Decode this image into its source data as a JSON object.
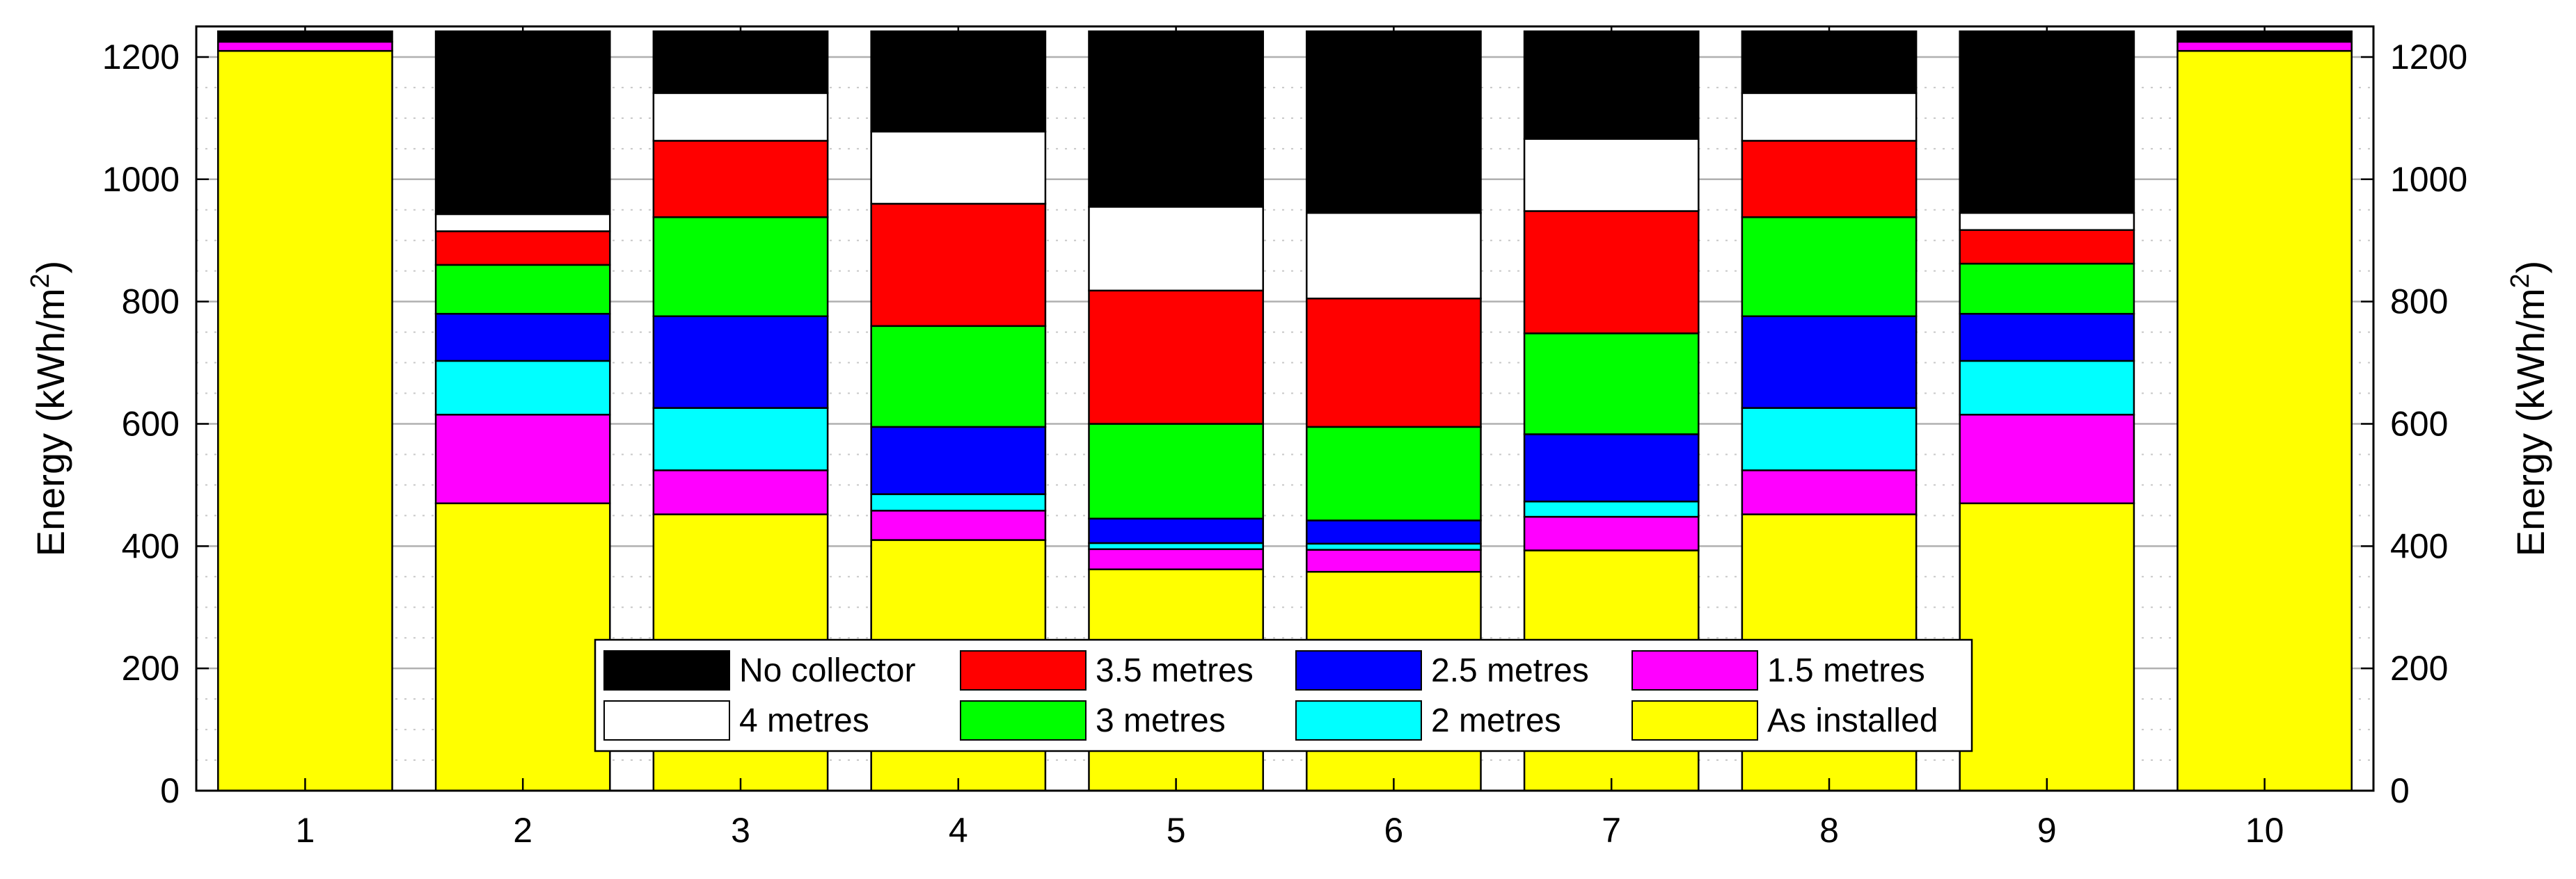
{
  "chart_data": {
    "type": "bar",
    "stacked": true,
    "categories": [
      "1",
      "2",
      "3",
      "4",
      "5",
      "6",
      "7",
      "8",
      "9",
      "10"
    ],
    "ylabel_base": "Energy (kWh/m",
    "ylabel_sup": "2",
    "ylabel_close": ")",
    "ylim": [
      0,
      1250
    ],
    "yticks": [
      "0",
      "200",
      "400",
      "600",
      "800",
      "1000",
      "1200"
    ],
    "grid": true,
    "legend_position": "bottom-center",
    "series": [
      {
        "name": "As installed",
        "color": "#ffff00",
        "values": [
          1210,
          470,
          452,
          410,
          362,
          358,
          393,
          452,
          470,
          1210
        ]
      },
      {
        "name": "1.5 metres",
        "color": "#ff00ff",
        "values": [
          15,
          145,
          72,
          48,
          33,
          36,
          55,
          72,
          145,
          15
        ]
      },
      {
        "name": "2 metres",
        "color": "#00ffff",
        "values": [
          0,
          88,
          102,
          27,
          10,
          10,
          25,
          102,
          88,
          0
        ]
      },
      {
        "name": "2.5 metres",
        "color": "#0000ff",
        "values": [
          0,
          77,
          150,
          110,
          40,
          38,
          110,
          150,
          77,
          0
        ]
      },
      {
        "name": "3 metres",
        "color": "#00ff00",
        "values": [
          0,
          80,
          162,
          165,
          155,
          153,
          165,
          162,
          82,
          0
        ]
      },
      {
        "name": "3.5 metres",
        "color": "#ff0000",
        "values": [
          0,
          55,
          125,
          200,
          218,
          210,
          200,
          125,
          55,
          0
        ]
      },
      {
        "name": "4 metres",
        "color": "#ffffff",
        "values": [
          0,
          28,
          78,
          118,
          137,
          140,
          118,
          78,
          28,
          0
        ]
      },
      {
        "name": "No collector",
        "color": "#000000",
        "values": [
          17,
          299,
          101,
          164,
          287,
          297,
          176,
          101,
          297,
          17
        ]
      }
    ],
    "legend_layout": [
      [
        "No collector",
        "3.5 metres",
        "2.5 metres",
        "1.5 metres"
      ],
      [
        "4 metres",
        "3 metres",
        "2 metres",
        "As installed"
      ]
    ]
  }
}
